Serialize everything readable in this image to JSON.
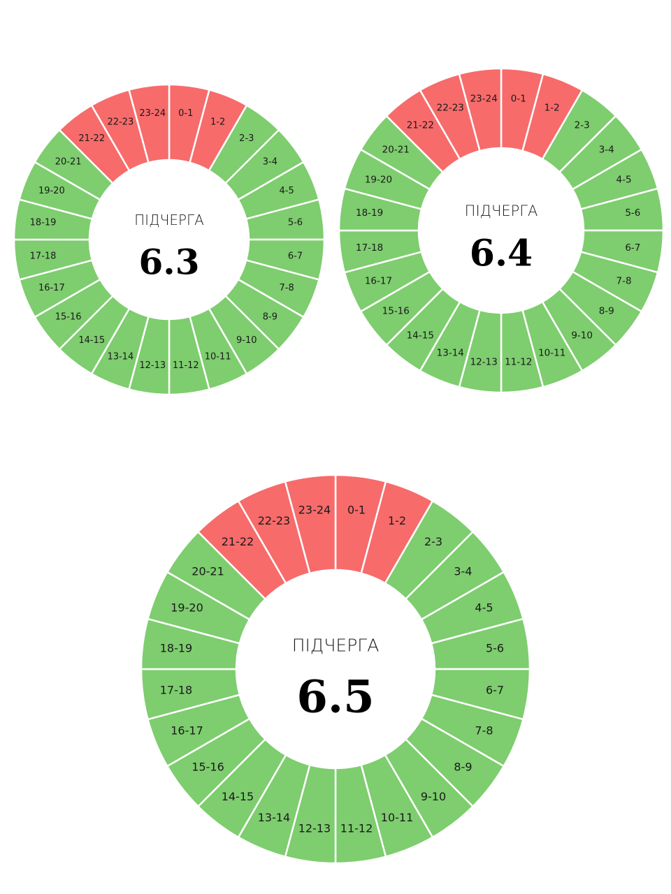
{
  "palette": {
    "on": "#7ecd6f",
    "off": "#f76b6b",
    "background": "#ffffff"
  },
  "chart_data": [
    {
      "type": "pie",
      "title": "ПІДЧЕРГА",
      "number": "6.3",
      "labels": [
        "0-1",
        "1-2",
        "2-3",
        "3-4",
        "4-5",
        "5-6",
        "6-7",
        "7-8",
        "8-9",
        "9-10",
        "10-11",
        "11-12",
        "12-13",
        "13-14",
        "14-15",
        "15-16",
        "16-17",
        "17-18",
        "18-19",
        "19-20",
        "20-21",
        "21-22",
        "22-23",
        "23-24"
      ],
      "off_hours": [
        "21-22",
        "22-23",
        "23-24",
        "0-1",
        "1-2"
      ]
    },
    {
      "type": "pie",
      "title": "ПІДЧЕРГА",
      "number": "6.4",
      "labels": [
        "0-1",
        "1-2",
        "2-3",
        "3-4",
        "4-5",
        "5-6",
        "6-7",
        "7-8",
        "8-9",
        "9-10",
        "10-11",
        "11-12",
        "12-13",
        "13-14",
        "14-15",
        "15-16",
        "16-17",
        "17-18",
        "18-19",
        "19-20",
        "20-21",
        "21-22",
        "22-23",
        "23-24"
      ],
      "off_hours": [
        "21-22",
        "22-23",
        "23-24",
        "0-1",
        "1-2"
      ]
    },
    {
      "type": "pie",
      "title": "ПІДЧЕРГА",
      "number": "6.5",
      "labels": [
        "0-1",
        "1-2",
        "2-3",
        "3-4",
        "4-5",
        "5-6",
        "6-7",
        "7-8",
        "8-9",
        "9-10",
        "10-11",
        "11-12",
        "12-13",
        "13-14",
        "14-15",
        "15-16",
        "16-17",
        "17-18",
        "18-19",
        "19-20",
        "20-21",
        "21-22",
        "22-23",
        "23-24"
      ],
      "off_hours": [
        "21-22",
        "22-23",
        "23-24",
        "0-1",
        "1-2"
      ]
    }
  ]
}
